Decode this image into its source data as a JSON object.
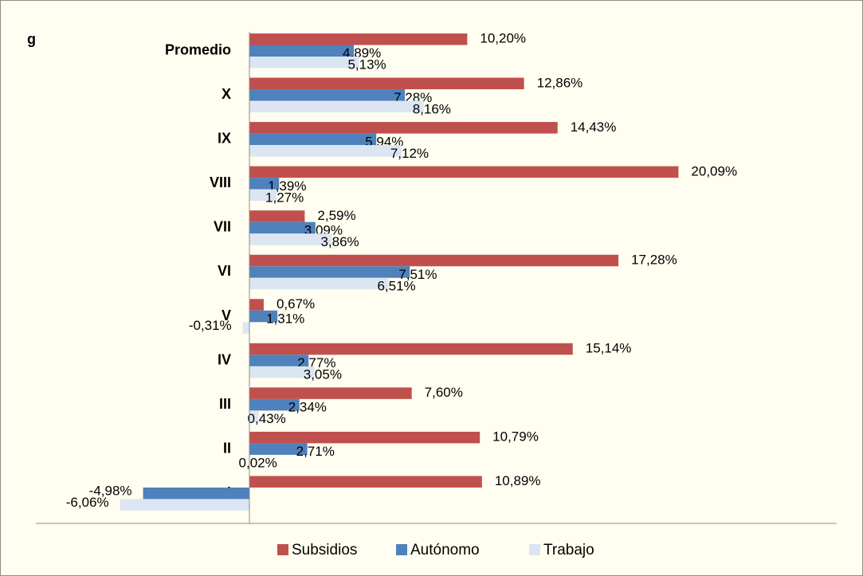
{
  "chart_data": {
    "type": "hbar",
    "annotation": "g",
    "categories": [
      "Promedio",
      "X",
      "IX",
      "VIII",
      "VII",
      "VI",
      "V",
      "IV",
      "III",
      "II",
      "I"
    ],
    "series": [
      {
        "name": "Subsidios",
        "color": "#c0504d",
        "values": [
          10.2,
          12.86,
          14.43,
          20.09,
          2.59,
          17.28,
          0.67,
          15.14,
          7.6,
          10.79,
          10.89
        ],
        "value_labels": [
          "10,20%",
          "12,86%",
          "14,43%",
          "20,09%",
          "2,59%",
          "17,28%",
          "0,67%",
          "15,14%",
          "7,60%",
          "10,79%",
          "10,89%"
        ]
      },
      {
        "name": "Autónomo",
        "color": "#4f81bd",
        "values": [
          4.89,
          7.28,
          5.94,
          1.39,
          3.09,
          7.51,
          1.31,
          2.77,
          2.34,
          2.71,
          -4.98
        ],
        "value_labels": [
          "4,89%",
          "7,28%",
          "5,94%",
          "1,39%",
          "3,09%",
          "7,51%",
          "1,31%",
          "2,77%",
          "2,34%",
          "2,71%",
          "-4,98%"
        ]
      },
      {
        "name": "Trabajo",
        "color": "#dce6f2",
        "values": [
          5.13,
          8.16,
          7.12,
          1.27,
          3.86,
          6.51,
          -0.31,
          3.05,
          0.43,
          0.02,
          -6.06
        ],
        "value_labels": [
          "5,13%",
          "8,16%",
          "7,12%",
          "1,27%",
          "3,86%",
          "6,51%",
          "-0,31%",
          "3,05%",
          "0,43%",
          "0,02%",
          "-6,06%"
        ]
      }
    ],
    "xlim": [
      -10,
      27.5
    ],
    "legend": "bottom"
  }
}
